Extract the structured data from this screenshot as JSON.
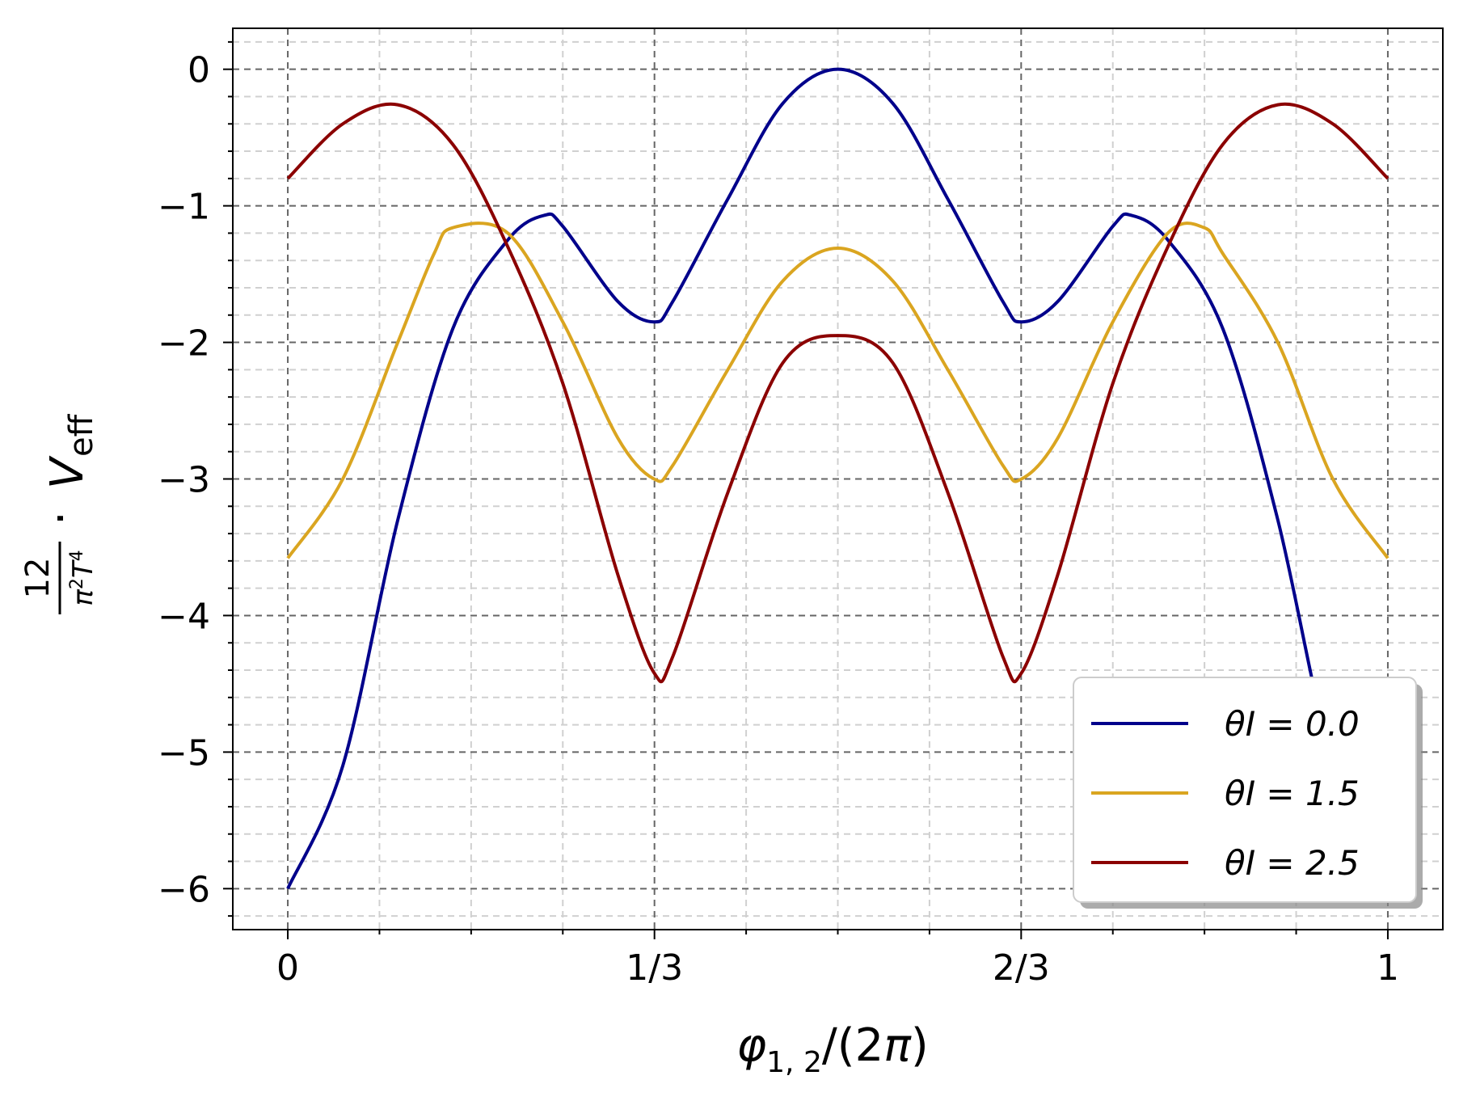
{
  "chart_data": {
    "type": "line",
    "xlabel": "φ1,2/(2π)",
    "ylabel": "12/(π²T⁴) · Veff",
    "x_ticks": [
      {
        "value": 0,
        "label": "0"
      },
      {
        "value": 0.3333333333,
        "label": "1/3"
      },
      {
        "value": 0.6666666667,
        "label": "2/3"
      },
      {
        "value": 1,
        "label": "1"
      }
    ],
    "y_ticks": [
      {
        "value": 0,
        "label": "0"
      },
      {
        "value": -1,
        "label": "−1"
      },
      {
        "value": -2,
        "label": "−2"
      },
      {
        "value": -3,
        "label": "−3"
      },
      {
        "value": -4,
        "label": "−4"
      },
      {
        "value": -5,
        "label": "−5"
      },
      {
        "value": -6,
        "label": "−6"
      }
    ],
    "xlim": [
      -0.05,
      1.05
    ],
    "ylim": [
      -6.3,
      0.3
    ],
    "grid": {
      "major": true,
      "minor": true
    },
    "legend_placement": "lower-right",
    "series": [
      {
        "name": "θI = 0.0",
        "color": "#00008b",
        "x": [
          0,
          0.05,
          0.1,
          0.15,
          0.2,
          0.233,
          0.25,
          0.3,
          0.333,
          0.35,
          0.4,
          0.45,
          0.5,
          0.55,
          0.6,
          0.65,
          0.667,
          0.7,
          0.75,
          0.767,
          0.8,
          0.85,
          0.9,
          0.95,
          1
        ],
        "y": [
          -6.0,
          -5.1,
          -3.3,
          -1.9,
          -1.25,
          -1.07,
          -1.15,
          -1.7,
          -1.85,
          -1.7,
          -0.95,
          -0.25,
          0.0,
          -0.25,
          -0.95,
          -1.7,
          -1.85,
          -1.7,
          -1.15,
          -1.07,
          -1.25,
          -1.9,
          -3.3,
          -5.1,
          -6.0
        ]
      },
      {
        "name": "θI = 1.5",
        "color": "#daa520",
        "x": [
          0,
          0.05,
          0.1,
          0.133,
          0.15,
          0.2,
          0.25,
          0.3,
          0.333,
          0.35,
          0.4,
          0.45,
          0.5,
          0.55,
          0.6,
          0.65,
          0.667,
          0.7,
          0.75,
          0.8,
          0.833,
          0.85,
          0.9,
          0.95,
          1
        ],
        "y": [
          -3.58,
          -3.0,
          -2.0,
          -1.35,
          -1.16,
          -1.2,
          -1.85,
          -2.7,
          -3.0,
          -2.9,
          -2.2,
          -1.55,
          -1.31,
          -1.55,
          -2.2,
          -2.9,
          -3.0,
          -2.7,
          -1.85,
          -1.2,
          -1.16,
          -1.35,
          -2.0,
          -3.0,
          -3.58
        ]
      },
      {
        "name": "θI = 2.5",
        "color": "#8b0000",
        "x": [
          0,
          0.05,
          0.1,
          0.15,
          0.2,
          0.25,
          0.3,
          0.333,
          0.35,
          0.4,
          0.45,
          0.5,
          0.55,
          0.6,
          0.65,
          0.667,
          0.7,
          0.75,
          0.8,
          0.85,
          0.9,
          0.95,
          1
        ],
        "y": [
          -0.8,
          -0.4,
          -0.26,
          -0.55,
          -1.3,
          -2.3,
          -3.7,
          -4.42,
          -4.3,
          -3.1,
          -2.15,
          -1.95,
          -2.15,
          -3.1,
          -4.3,
          -4.42,
          -3.7,
          -2.3,
          -1.3,
          -0.55,
          -0.26,
          -0.4,
          -0.8
        ]
      }
    ]
  }
}
